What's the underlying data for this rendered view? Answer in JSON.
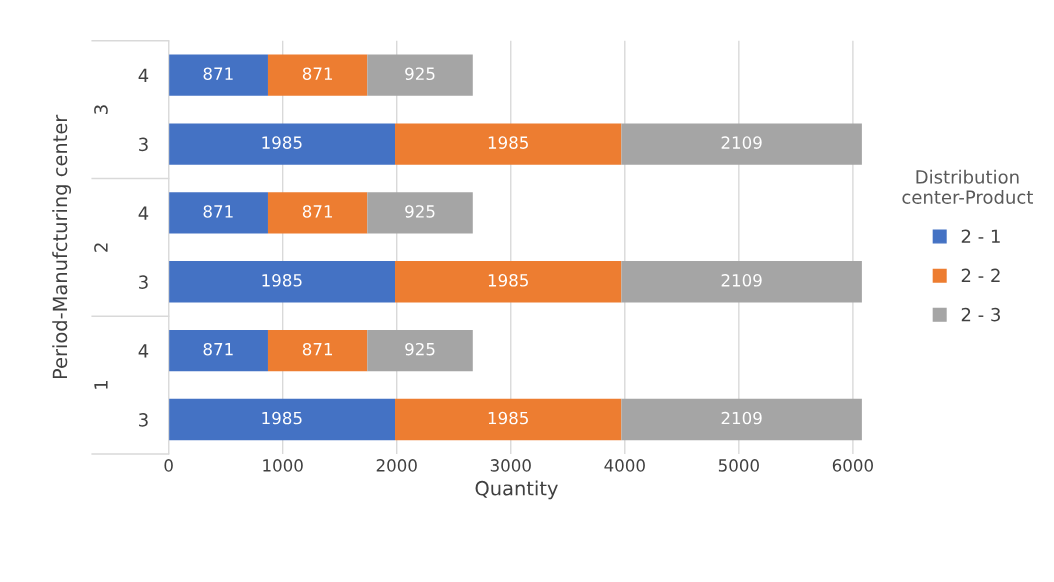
{
  "chart_data": {
    "type": "bar",
    "orientation": "horizontal",
    "stacked": true,
    "xlabel": "Quantity",
    "ylabel": "Period-Manufcturing center",
    "legend_title": "Distribution\ncenter-Product",
    "categories": [
      "4",
      "3",
      "4",
      "3",
      "4",
      "3"
    ],
    "annotations": [
      "3",
      "2",
      "1"
    ],
    "series": [
      {
        "name": "2 - 1",
        "color": "#4472c4",
        "values": [
          871,
          1985,
          871,
          1985,
          871,
          1985
        ]
      },
      {
        "name": "2 - 2",
        "color": "#ed7d31",
        "values": [
          871,
          1985,
          871,
          1985,
          871,
          1985
        ]
      },
      {
        "name": "2 - 3",
        "color": "#a5a5a5",
        "values": [
          925,
          2109,
          925,
          2109,
          925,
          2109
        ]
      }
    ],
    "xlim": [
      0,
      6100
    ],
    "xticks": [
      0,
      1000,
      2000,
      3000,
      4000,
      5000,
      6000
    ],
    "grid": "x",
    "legend": "right",
    "data_labels": true
  }
}
